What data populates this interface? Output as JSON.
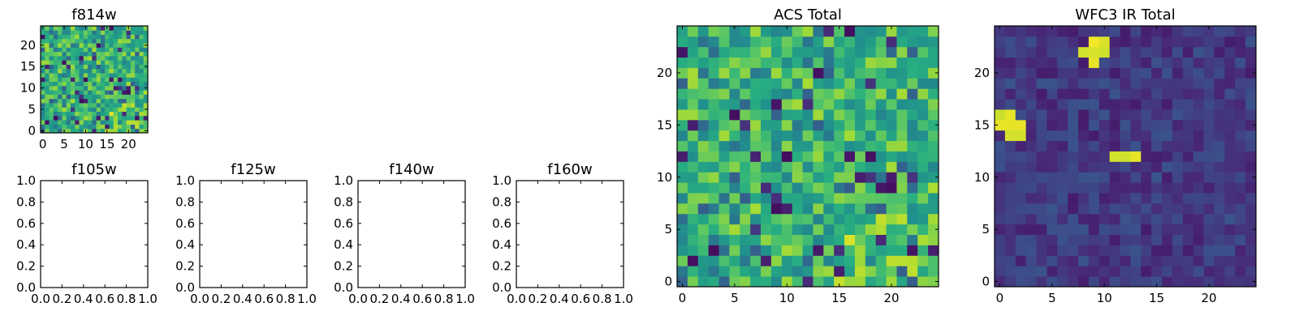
{
  "chart_data": [
    {
      "type": "heatmap",
      "title": "f814w",
      "grid_size": 25,
      "colormap": "viridis",
      "seed": 814,
      "xlim": [
        -0.5,
        24.5
      ],
      "ylim": [
        -0.5,
        24.5
      ],
      "xticks": [
        "0",
        "5",
        "10",
        "15",
        "20"
      ],
      "yticks": [
        "0",
        "5",
        "10",
        "15",
        "20"
      ],
      "grid": false
    },
    {
      "type": "empty",
      "title": "f105w",
      "xlim": [
        0.0,
        1.0
      ],
      "ylim": [
        0.0,
        1.0
      ],
      "xticks": [
        "0.0",
        "0.2",
        "0.4",
        "0.6",
        "0.8",
        "1.0"
      ],
      "yticks": [
        "0.0",
        "0.2",
        "0.4",
        "0.6",
        "0.8",
        "1.0"
      ]
    },
    {
      "type": "empty",
      "title": "f125w",
      "xlim": [
        0.0,
        1.0
      ],
      "ylim": [
        0.0,
        1.0
      ],
      "xticks": [
        "0.0",
        "0.2",
        "0.4",
        "0.6",
        "0.8",
        "1.0"
      ],
      "yticks": [
        "0.0",
        "0.2",
        "0.4",
        "0.6",
        "0.8",
        "1.0"
      ]
    },
    {
      "type": "empty",
      "title": "f140w",
      "xlim": [
        0.0,
        1.0
      ],
      "ylim": [
        0.0,
        1.0
      ],
      "xticks": [
        "0.0",
        "0.2",
        "0.4",
        "0.6",
        "0.8",
        "1.0"
      ],
      "yticks": [
        "0.0",
        "0.2",
        "0.4",
        "0.6",
        "0.8",
        "1.0"
      ]
    },
    {
      "type": "empty",
      "title": "f160w",
      "xlim": [
        0.0,
        1.0
      ],
      "ylim": [
        0.0,
        1.0
      ],
      "xticks": [
        "0.0",
        "0.2",
        "0.4",
        "0.6",
        "0.8",
        "1.0"
      ],
      "yticks": [
        "0.0",
        "0.2",
        "0.4",
        "0.6",
        "0.8",
        "1.0"
      ]
    },
    {
      "type": "heatmap",
      "title": "ACS Total",
      "grid_size": 25,
      "colormap": "viridis",
      "seed": 814,
      "xlim": [
        -0.5,
        24.5
      ],
      "ylim": [
        -0.5,
        24.5
      ],
      "xticks": [
        "0",
        "5",
        "10",
        "15",
        "20"
      ],
      "yticks": [
        "0",
        "5",
        "10",
        "15",
        "20"
      ],
      "grid": false
    },
    {
      "type": "heatmap",
      "title": "WFC3 IR Total",
      "grid_size": 25,
      "colormap": "viridis",
      "seed": 3,
      "xlim": [
        -0.5,
        24.5
      ],
      "ylim": [
        -0.5,
        24.5
      ],
      "xticks": [
        "0",
        "5",
        "10",
        "15",
        "20"
      ],
      "yticks": [
        "0",
        "5",
        "10",
        "15",
        "20"
      ],
      "grid": false,
      "bright_cells": [
        [
          9,
          23
        ],
        [
          10,
          23
        ],
        [
          8,
          22
        ],
        [
          9,
          22
        ],
        [
          10,
          22
        ],
        [
          9,
          21
        ],
        [
          0,
          16
        ],
        [
          1,
          16
        ],
        [
          0,
          15
        ],
        [
          1,
          15
        ],
        [
          2,
          15
        ],
        [
          1,
          14
        ],
        [
          2,
          14
        ],
        [
          11,
          12
        ],
        [
          12,
          12
        ],
        [
          13,
          12
        ]
      ]
    }
  ]
}
